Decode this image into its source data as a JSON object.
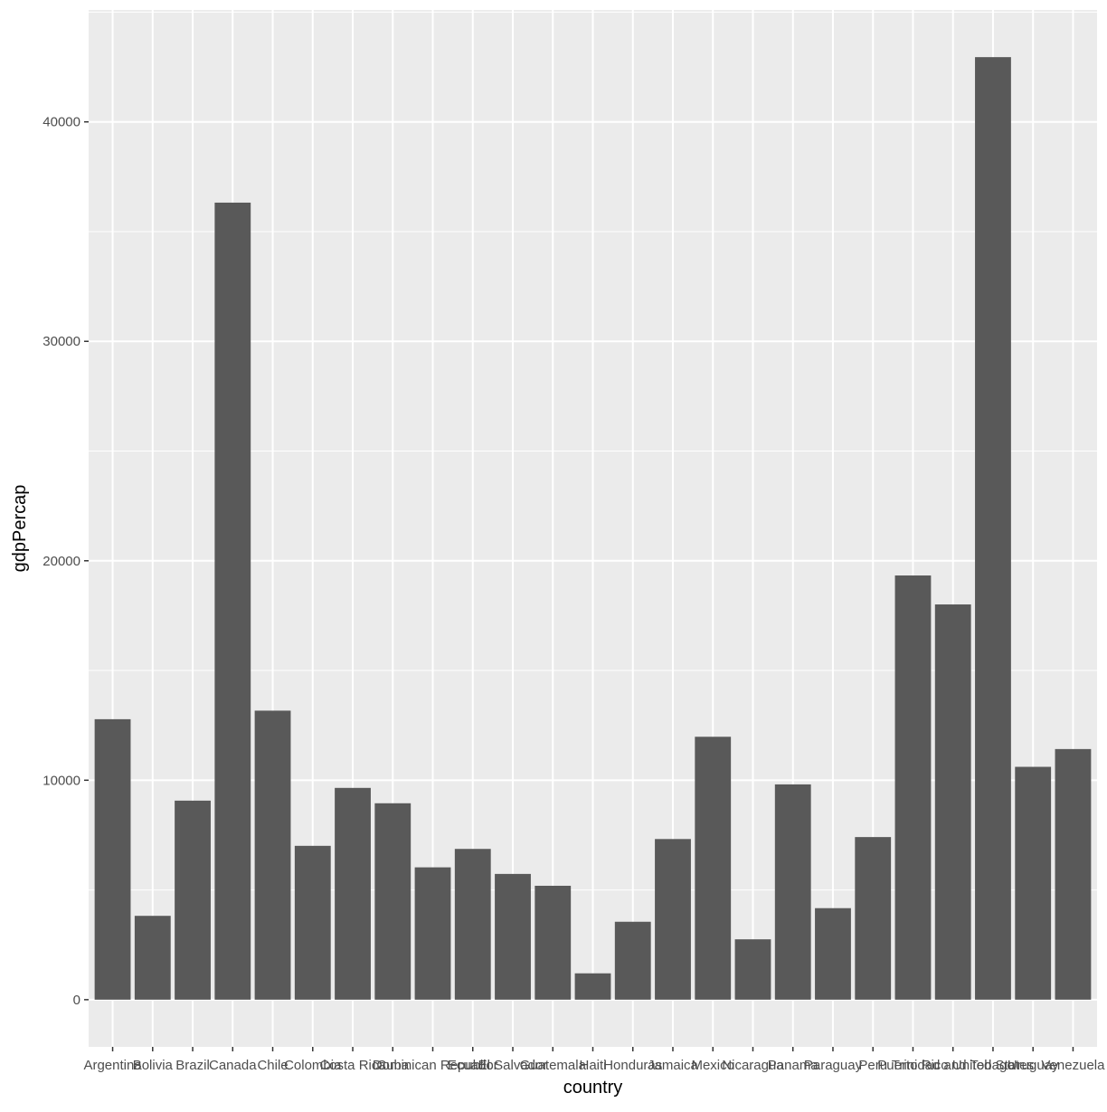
{
  "chart_data": {
    "type": "bar",
    "xlabel": "country",
    "ylabel": "gdpPercap",
    "categories": [
      "Argentina",
      "Bolivia",
      "Brazil",
      "Canada",
      "Chile",
      "Colombia",
      "Costa Rica",
      "Cuba",
      "Dominican Republic",
      "Ecuador",
      "El Salvador",
      "Guatemala",
      "Haiti",
      "Honduras",
      "Jamaica",
      "Mexico",
      "Nicaragua",
      "Panama",
      "Paraguay",
      "Peru",
      "Puerto Rico",
      "Trinidad and Tobago",
      "United States",
      "Uruguay",
      "Venezuela"
    ],
    "values": [
      12780,
      3820,
      9070,
      36320,
      13170,
      7010,
      9650,
      8950,
      6030,
      6870,
      5730,
      5190,
      1200,
      3550,
      7320,
      11980,
      2750,
      9810,
      4170,
      7410,
      19330,
      18010,
      42950,
      10610,
      11420
    ],
    "yticks": [
      0,
      10000,
      20000,
      30000,
      40000
    ],
    "ylim": [
      -2150,
      45100
    ],
    "grid": true,
    "colors": {
      "bar": "#595959",
      "panel": "#ebebeb",
      "grid_major": "#ffffff"
    }
  }
}
